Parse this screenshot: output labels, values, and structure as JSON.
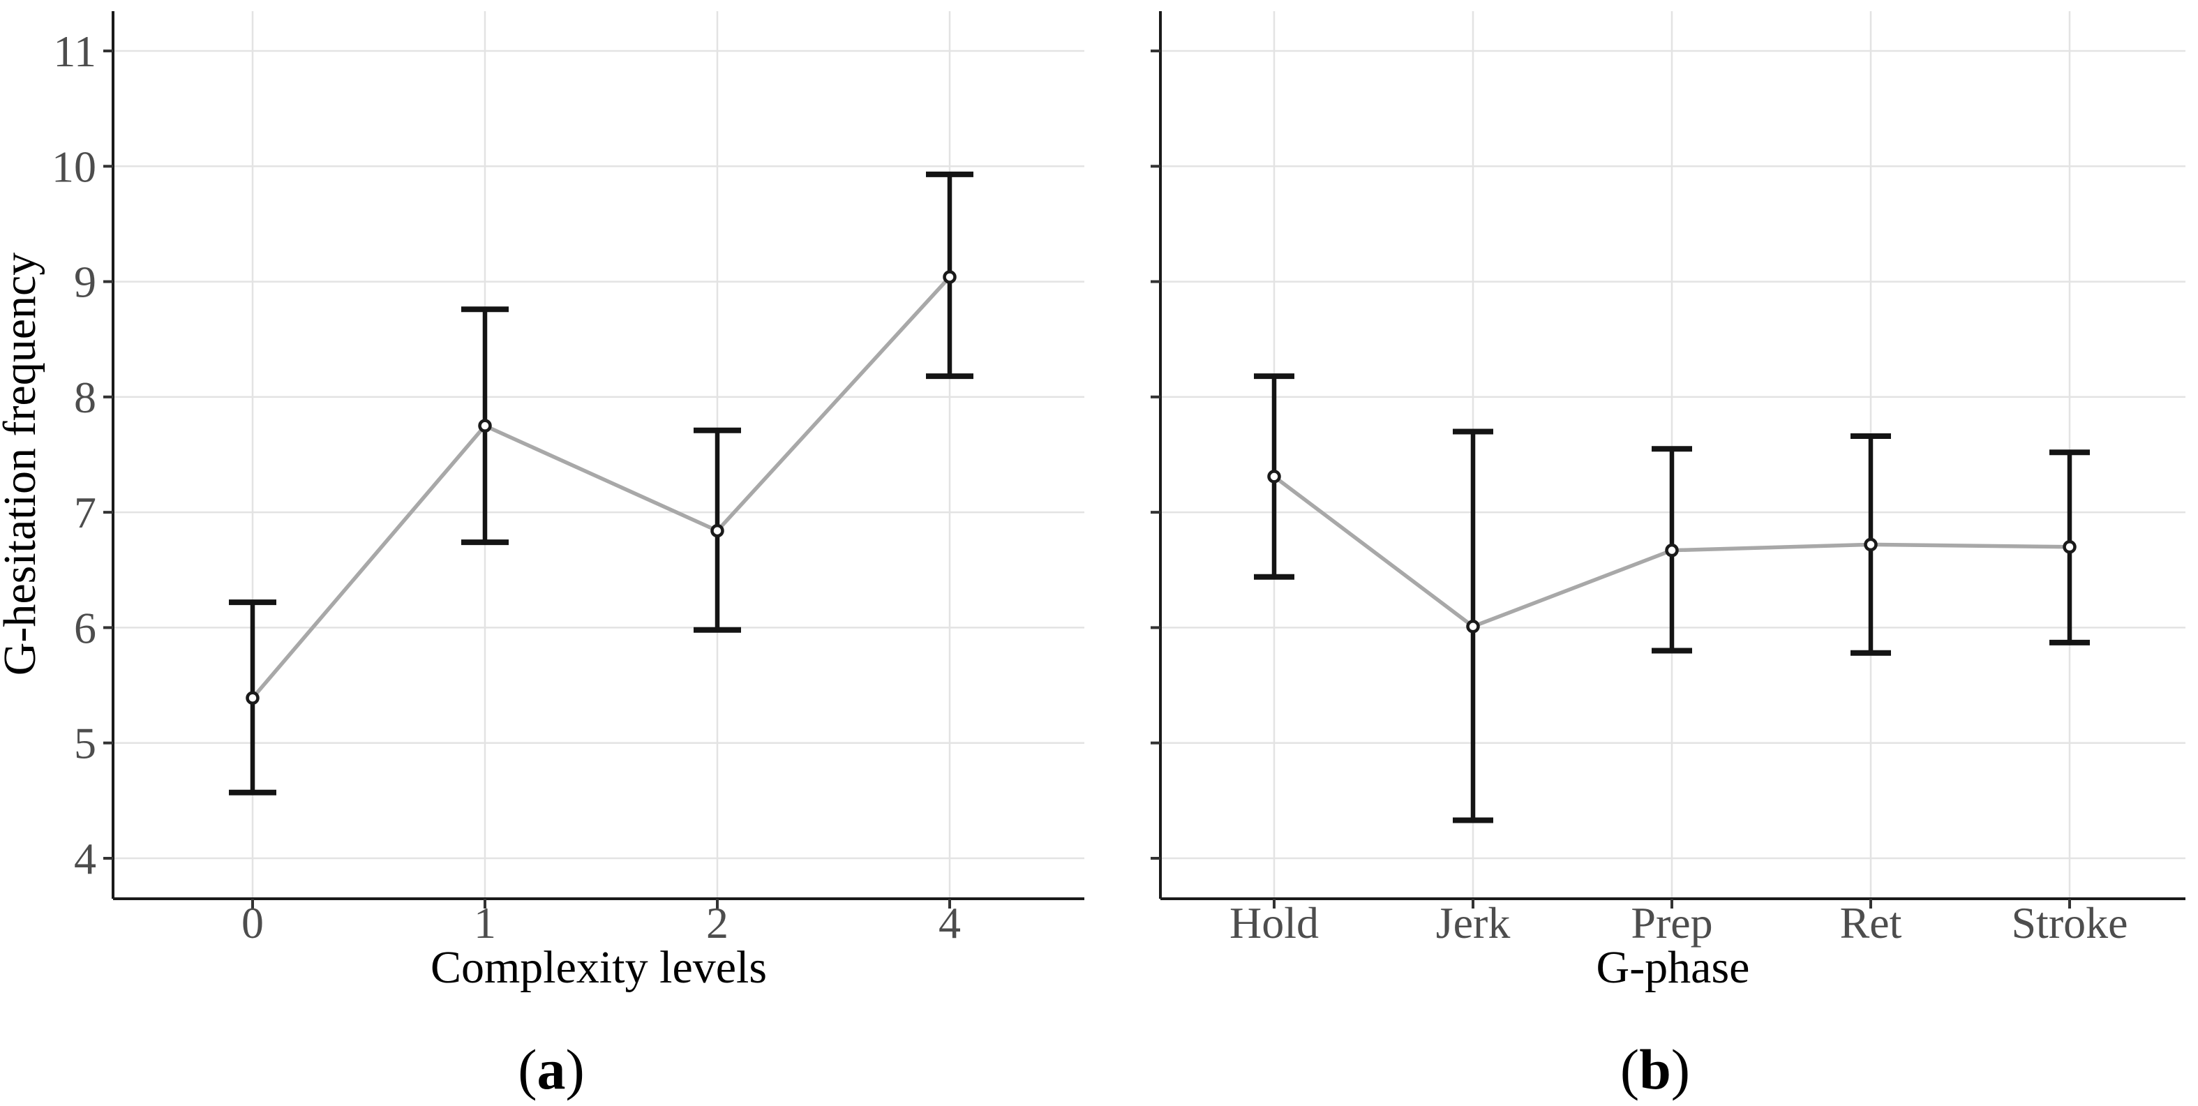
{
  "figure": {
    "ylabel": "G-hesitation frequency",
    "background": "#ffffff"
  },
  "colors": {
    "axis": "#1a1a1a",
    "tick_mark": "#333333",
    "grid": "#e3e3e3",
    "error_bar": "#141414",
    "trend_line": "#a8a8a8",
    "marker_stroke": "#1a1a1a",
    "marker_fill": "#ffffff",
    "tick_label": "#4d4d4d",
    "axis_title": "#000000",
    "caption": "#000000"
  },
  "chart_data": [
    {
      "type": "line",
      "subtype": "pointrange-errorbar",
      "caption": {
        "open": "(",
        "letter": "a",
        "close": ")"
      },
      "xlabel": "Complexity levels",
      "ylabel": "G-hesitation frequency",
      "categories": [
        "0",
        "1",
        "2",
        "4"
      ],
      "series": [
        {
          "name": "mean",
          "values": [
            5.39,
            7.75,
            6.84,
            9.04
          ]
        },
        {
          "name": "ci_lower",
          "values": [
            4.57,
            6.74,
            5.98,
            8.18
          ]
        },
        {
          "name": "ci_upper",
          "values": [
            6.22,
            8.76,
            7.71,
            9.93
          ]
        }
      ],
      "yticks": [
        4,
        5,
        6,
        7,
        8,
        9,
        10,
        11
      ],
      "ylim": [
        3.65,
        11.35
      ],
      "show_ytick_labels": true,
      "grid": true,
      "legend": false
    },
    {
      "type": "line",
      "subtype": "pointrange-errorbar",
      "caption": {
        "open": "(",
        "letter": "b",
        "close": ")"
      },
      "xlabel": "G-phase",
      "ylabel": "",
      "categories": [
        "Hold",
        "Jerk",
        "Prep",
        "Ret",
        "Stroke"
      ],
      "series": [
        {
          "name": "mean",
          "values": [
            7.31,
            6.01,
            6.67,
            6.72,
            6.7
          ]
        },
        {
          "name": "ci_lower",
          "values": [
            6.44,
            4.33,
            5.8,
            5.78,
            5.87
          ]
        },
        {
          "name": "ci_upper",
          "values": [
            8.18,
            7.7,
            7.55,
            7.66,
            7.52
          ]
        }
      ],
      "yticks": [
        4,
        5,
        6,
        7,
        8,
        9,
        10,
        11
      ],
      "ylim": [
        3.65,
        11.35
      ],
      "show_ytick_labels": false,
      "grid": true,
      "legend": false
    }
  ]
}
